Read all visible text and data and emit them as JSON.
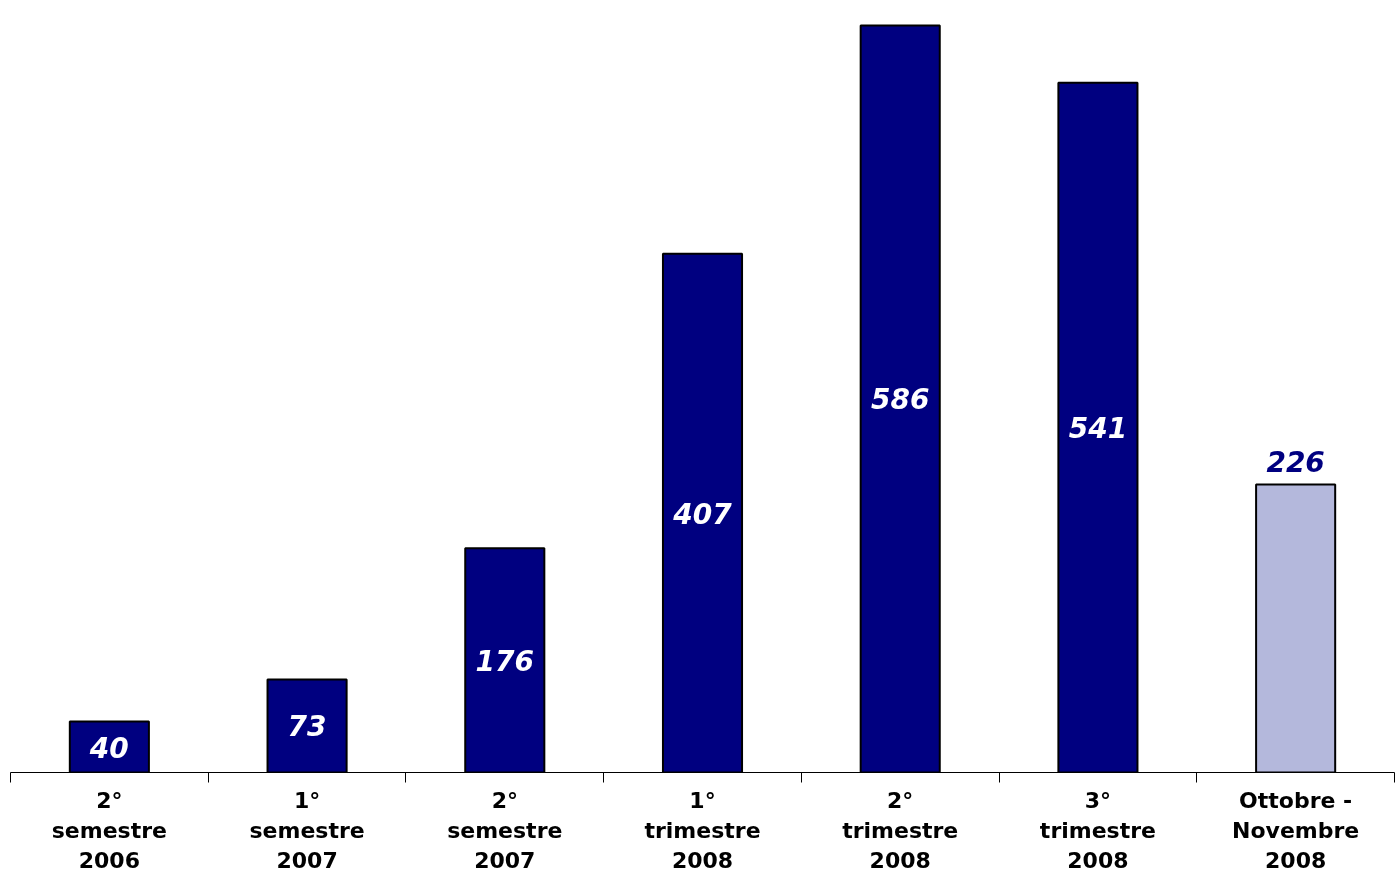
{
  "chart_data": {
    "type": "bar",
    "categories": [
      "2°\nsemestre\n2006",
      "1°\nsemestre\n2007",
      "2°\nsemestre\n2007",
      "1°\ntrimestre\n2008",
      "2°\ntrimestre\n2008",
      "3°\ntrimestre\n2008",
      "Ottobre -\nNovembre\n2008"
    ],
    "values": [
      40,
      73,
      176,
      407,
      586,
      541,
      226
    ],
    "colors": [
      "#000080",
      "#000080",
      "#000080",
      "#000080",
      "#000080",
      "#000080",
      "#b4b8dc"
    ],
    "data_labels": true,
    "grid": false
  }
}
